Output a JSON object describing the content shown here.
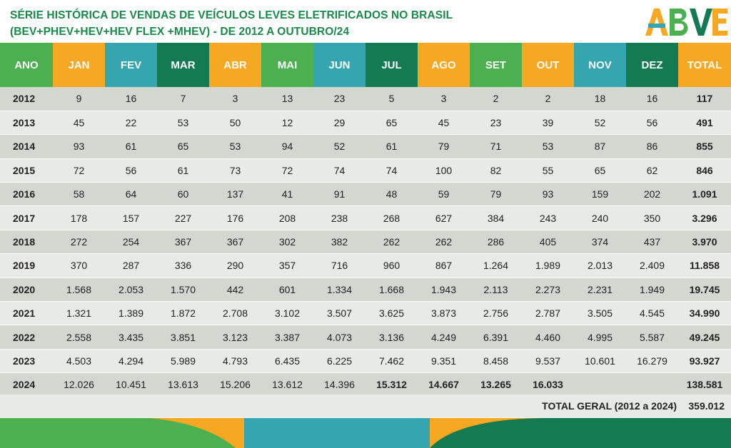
{
  "header": {
    "title_line1": "SÉRIE HISTÓRICA DE VENDAS DE VEÍCULOS LEVES ELETRIFICADOS NO BRASIL",
    "title_line2": "(BEV+PHEV+HEV+HEV FLEX +MHEV)  - DE 2012 A OUTUBRO/24",
    "logo_text": "ABVE"
  },
  "colors": {
    "green": "#4caf50",
    "orange": "#f7a823",
    "teal": "#35a6b0",
    "dark_green": "#137a52",
    "title": "#1a8a4a"
  },
  "chart_data": {
    "type": "table",
    "columns": [
      "ANO",
      "JAN",
      "FEV",
      "MAR",
      "ABR",
      "MAI",
      "JUN",
      "JUL",
      "AGO",
      "SET",
      "OUT",
      "NOV",
      "DEZ",
      "TOTAL"
    ],
    "rows": [
      {
        "year": "2012",
        "values": [
          "9",
          "16",
          "7",
          "3",
          "13",
          "23",
          "5",
          "3",
          "2",
          "2",
          "18",
          "16"
        ],
        "total": "117"
      },
      {
        "year": "2013",
        "values": [
          "45",
          "22",
          "53",
          "50",
          "12",
          "29",
          "65",
          "45",
          "23",
          "39",
          "52",
          "56"
        ],
        "total": "491"
      },
      {
        "year": "2014",
        "values": [
          "93",
          "61",
          "65",
          "53",
          "94",
          "52",
          "61",
          "79",
          "71",
          "53",
          "87",
          "86"
        ],
        "total": "855"
      },
      {
        "year": "2015",
        "values": [
          "72",
          "56",
          "61",
          "73",
          "72",
          "74",
          "74",
          "100",
          "82",
          "55",
          "65",
          "62"
        ],
        "total": "846"
      },
      {
        "year": "2016",
        "values": [
          "58",
          "64",
          "60",
          "137",
          "41",
          "91",
          "48",
          "59",
          "79",
          "93",
          "159",
          "202"
        ],
        "total": "1.091"
      },
      {
        "year": "2017",
        "values": [
          "178",
          "157",
          "227",
          "176",
          "208",
          "238",
          "268",
          "627",
          "384",
          "243",
          "240",
          "350"
        ],
        "total": "3.296"
      },
      {
        "year": "2018",
        "values": [
          "272",
          "254",
          "367",
          "367",
          "302",
          "382",
          "262",
          "262",
          "286",
          "405",
          "374",
          "437"
        ],
        "total": "3.970"
      },
      {
        "year": "2019",
        "values": [
          "370",
          "287",
          "336",
          "290",
          "357",
          "716",
          "960",
          "867",
          "1.264",
          "1.989",
          "2.013",
          "2.409"
        ],
        "total": "11.858"
      },
      {
        "year": "2020",
        "values": [
          "1.568",
          "2.053",
          "1.570",
          "442",
          "601",
          "1.334",
          "1.668",
          "1.943",
          "2.113",
          "2.273",
          "2.231",
          "1.949"
        ],
        "total": "19.745"
      },
      {
        "year": "2021",
        "values": [
          "1.321",
          "1.389",
          "1.872",
          "2.708",
          "3.102",
          "3.507",
          "3.625",
          "3.873",
          "2.756",
          "2.787",
          "3.505",
          "4.545"
        ],
        "total": "34.990"
      },
      {
        "year": "2022",
        "values": [
          "2.558",
          "3.435",
          "3.851",
          "3.123",
          "3.387",
          "4.073",
          "3.136",
          "4.249",
          "6.391",
          "4.460",
          "4.995",
          "5.587"
        ],
        "total": "49.245"
      },
      {
        "year": "2023",
        "values": [
          "4.503",
          "4.294",
          "5.989",
          "4.793",
          "6.435",
          "6.225",
          "7.462",
          "9.351",
          "8.458",
          "9.537",
          "10.601",
          "16.279"
        ],
        "total": "93.927"
      },
      {
        "year": "2024",
        "values": [
          "12.026",
          "10.451",
          "13.613",
          "15.206",
          "13.612",
          "14.396",
          "15.312",
          "14.667",
          "13.265",
          "16.033",
          "",
          ""
        ],
        "total": "138.581",
        "bold_months": [
          6,
          7,
          8,
          9
        ]
      }
    ],
    "grand_total_label": "TOTAL GERAL (2012 a 2024)",
    "grand_total": "359.012"
  }
}
